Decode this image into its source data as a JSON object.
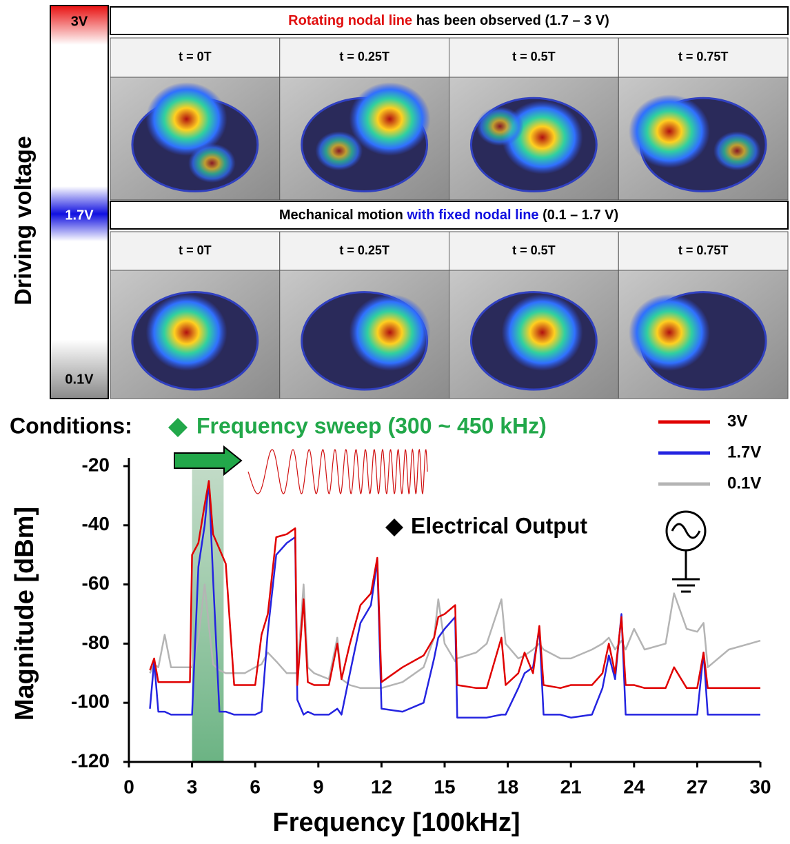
{
  "voltage_bar": {
    "title": "Driving voltage",
    "labels": [
      "3V",
      "1.7V",
      "0.1V"
    ]
  },
  "panels": [
    {
      "title": [
        {
          "text": "Rotating nodal line",
          "color": "#e01010"
        },
        {
          "text": " has been observed (1.7 – 3 V)",
          "color": "#000000"
        }
      ],
      "times": [
        "t = 0T",
        "t = 0.25T",
        "t = 0.5T",
        "t = 0.75T"
      ]
    },
    {
      "title": [
        {
          "text": "Mechanical motion ",
          "color": "#000000"
        },
        {
          "text": "with fixed nodal line",
          "color": "#1010e0"
        },
        {
          "text": " (0.1 – 1.7 V)",
          "color": "#000000"
        }
      ],
      "times": [
        "t = 0T",
        "t = 0.25T",
        "t = 0.5T",
        "t = 0.75T"
      ]
    }
  ],
  "chart_data": {
    "type": "line",
    "xlabel": "Frequency [100kHz]",
    "ylabel": "Magnitude [dBm]",
    "annotations": [
      "Conditions:",
      "Frequency sweep (300 ~ 450 kHz)",
      "Electrical Output"
    ],
    "sweep_band": [
      3,
      4.5
    ],
    "xlim": [
      0,
      30
    ],
    "ylim": [
      -120,
      -20
    ],
    "xticks": [
      0,
      3,
      6,
      9,
      12,
      15,
      18,
      21,
      24,
      27,
      30
    ],
    "yticks": [
      -20,
      -40,
      -60,
      -80,
      -100,
      -120
    ],
    "x": [
      1.0,
      1.2,
      1.4,
      1.7,
      2.0,
      2.5,
      2.9,
      3.0,
      3.3,
      3.6,
      3.8,
      4.0,
      4.3,
      4.6,
      5.0,
      5.5,
      6.0,
      6.3,
      6.6,
      7.0,
      7.5,
      7.9,
      8.0,
      8.3,
      8.5,
      8.8,
      9.5,
      9.9,
      10.1,
      10.5,
      11.0,
      11.5,
      11.8,
      12.0,
      13.0,
      14.0,
      14.5,
      14.7,
      15.0,
      15.5,
      15.6,
      16.5,
      17.0,
      17.7,
      17.9,
      18.5,
      18.8,
      19.2,
      19.5,
      19.7,
      20.5,
      21.0,
      22.0,
      22.5,
      22.8,
      23.1,
      23.4,
      23.6,
      24.0,
      24.5,
      25.5,
      25.9,
      26.5,
      27.0,
      27.3,
      27.5,
      28.5,
      29.5,
      30.0
    ],
    "series": [
      {
        "name": "3V",
        "color": "#e00000",
        "values": [
          -89,
          -85,
          -93,
          -93,
          -93,
          -93,
          -93,
          -50,
          -46,
          -33,
          -25,
          -43,
          -48,
          -53,
          -94,
          -94,
          -94,
          -77,
          -70,
          -44,
          -43,
          -41,
          -94,
          -65,
          -93,
          -94,
          -94,
          -80,
          -92,
          -80,
          -67,
          -63,
          -51,
          -93,
          -88,
          -84,
          -78,
          -71,
          -70,
          -67,
          -94,
          -95,
          -95,
          -78,
          -94,
          -90,
          -83,
          -90,
          -74,
          -94,
          -95,
          -94,
          -94,
          -90,
          -80,
          -90,
          -71,
          -94,
          -94,
          -95,
          -95,
          -88,
          -95,
          -95,
          -83,
          -95,
          -95,
          -95,
          -95
        ]
      },
      {
        "name": "1.7V",
        "color": "#2424e0",
        "values": [
          -102,
          -86,
          -103,
          -103,
          -104,
          -104,
          -104,
          -104,
          -54,
          -40,
          -25,
          -58,
          -103,
          -103,
          -104,
          -104,
          -104,
          -103,
          -76,
          -50,
          -46,
          -44,
          -99,
          -104,
          -103,
          -104,
          -104,
          -102,
          -104,
          -90,
          -73,
          -67,
          -52,
          -102,
          -103,
          -100,
          -85,
          -78,
          -75,
          -71,
          -105,
          -105,
          -105,
          -104,
          -104,
          -95,
          -90,
          -88,
          -75,
          -104,
          -104,
          -105,
          -104,
          -95,
          -84,
          -92,
          -70,
          -104,
          -104,
          -104,
          -104,
          -104,
          -104,
          -104,
          -83,
          -104,
          -104,
          -104,
          -104
        ]
      },
      {
        "name": "0.1V",
        "color": "#b4b4b4",
        "values": [
          -90,
          -87,
          -88,
          -77,
          -88,
          -88,
          -88,
          -88,
          -78,
          -60,
          -74,
          -87,
          -89,
          -90,
          -90,
          -90,
          -88,
          -87,
          -83,
          -86,
          -90,
          -90,
          -90,
          -60,
          -88,
          -90,
          -92,
          -78,
          -92,
          -94,
          -95,
          -95,
          -95,
          -95,
          -93,
          -88,
          -78,
          -65,
          -80,
          -86,
          -85,
          -83,
          -80,
          -65,
          -80,
          -85,
          -84,
          -82,
          -80,
          -82,
          -85,
          -85,
          -82,
          -80,
          -78,
          -82,
          -79,
          -82,
          -75,
          -82,
          -80,
          -63,
          -75,
          -76,
          -73,
          -88,
          -82,
          -80,
          -79
        ]
      }
    ]
  }
}
